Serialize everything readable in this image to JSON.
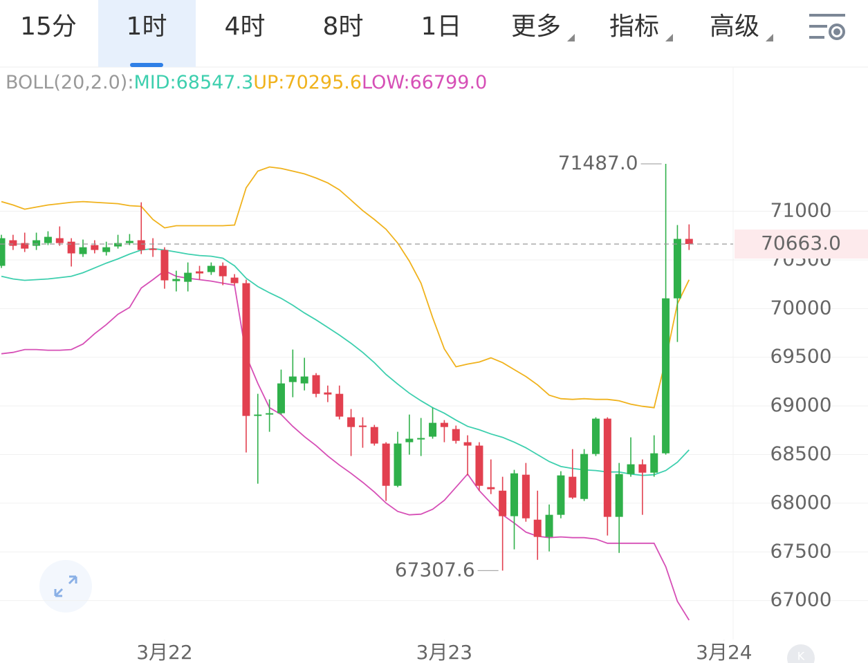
{
  "tabs": [
    {
      "label": "15分",
      "selected": false,
      "dropdown": false
    },
    {
      "label": "1时",
      "selected": true,
      "dropdown": false
    },
    {
      "label": "4时",
      "selected": false,
      "dropdown": false
    },
    {
      "label": "8时",
      "selected": false,
      "dropdown": false
    },
    {
      "label": "1日",
      "selected": false,
      "dropdown": false
    },
    {
      "label": "更多",
      "selected": false,
      "dropdown": true
    },
    {
      "label": "指标",
      "selected": false,
      "dropdown": true
    },
    {
      "label": "高级",
      "selected": false,
      "dropdown": true
    }
  ],
  "chart_data": {
    "type": "candlestick",
    "indicator": "BOLL(20,2.0):",
    "up_color": "#2fb04a",
    "down_color": "#e2404f",
    "xlim": [
      -0.12,
      62.78
    ],
    "xticks": [
      {
        "value": 14,
        "label": "3月22"
      },
      {
        "value": 38,
        "label": "3月23"
      },
      {
        "value": 62,
        "label": "3月24"
      }
    ],
    "ylim": [
      66600,
      72460
    ],
    "yticks": [
      67000,
      67500,
      68000,
      68500,
      69000,
      69500,
      70000,
      70500,
      71000
    ],
    "grid": true,
    "last_price": {
      "value": 70663,
      "label": "70663.0"
    },
    "annotations": [
      {
        "index": 57,
        "value": 71487,
        "label": "71487.0"
      },
      {
        "index": 43,
        "value": 67307.6,
        "label": "67307.6"
      }
    ],
    "candles": {
      "open": [
        70439,
        70702,
        70673,
        70645,
        70673,
        70723,
        70687,
        70560,
        70652,
        70581,
        70638,
        70673,
        70702,
        70616,
        70602,
        70282,
        70275,
        70382,
        70375,
        70439,
        70318,
        70261,
        68897,
        68911,
        68925,
        69245,
        69231,
        69316,
        69138,
        69124,
        68883,
        68798,
        68783,
        68613,
        68179,
        68627,
        68655,
        68684,
        68826,
        68762,
        68627,
        68592,
        68165,
        68129,
        67867,
        68293,
        67831,
        67654,
        67881,
        68272,
        68044,
        68506,
        68869,
        67860,
        68300,
        68400,
        68314,
        68513,
        70105,
        70716
      ],
      "high": [
        70758,
        70758,
        70780,
        70780,
        70794,
        70844,
        70723,
        70709,
        70702,
        70687,
        70758,
        70766,
        71092,
        70723,
        70630,
        70389,
        70474,
        70439,
        70474,
        70474,
        70354,
        70297,
        69124,
        69067,
        69373,
        69579,
        69494,
        69337,
        69209,
        69209,
        68968,
        68883,
        68805,
        68627,
        68734,
        68911,
        68876,
        68982,
        68854,
        68798,
        68698,
        68627,
        68450,
        68272,
        68343,
        68414,
        68129,
        67987,
        68329,
        68556,
        68556,
        68883,
        68883,
        68414,
        68677,
        68450,
        68698,
        71487,
        70858,
        70865
      ],
      "low": [
        70417,
        70602,
        70581,
        70602,
        70652,
        70645,
        70432,
        70531,
        70567,
        70545,
        70616,
        70652,
        70560,
        70531,
        70204,
        70176,
        70176,
        70297,
        70346,
        70240,
        70240,
        68521,
        68201,
        68734,
        68911,
        69089,
        69159,
        69089,
        69039,
        68861,
        68485,
        68570,
        68592,
        68023,
        68165,
        68499,
        68485,
        68663,
        68627,
        68613,
        68286,
        68129,
        68094,
        67307.6,
        67526,
        67810,
        67419,
        67505,
        67845,
        68044,
        68023,
        68485,
        67668,
        67490,
        68272,
        67881,
        68272,
        68499,
        69657,
        70602
      ],
      "close": [
        70723,
        70645,
        70616,
        70702,
        70737,
        70673,
        70567,
        70630,
        70602,
        70630,
        70673,
        70695,
        70602,
        70602,
        70290,
        70304,
        70368,
        70361,
        70439,
        70332,
        70261,
        68897,
        68911,
        68925,
        69231,
        69302,
        69302,
        69124,
        69117,
        68890,
        68783,
        68783,
        68613,
        68179,
        68613,
        68663,
        68670,
        68826,
        68783,
        68641,
        68592,
        68179,
        68144,
        67867,
        68307,
        67845,
        67654,
        67881,
        68286,
        68058,
        68506,
        68869,
        67860,
        68300,
        68400,
        68314,
        68513,
        70105,
        70716,
        70663
      ]
    },
    "series": [
      {
        "name": "MID:",
        "color": "#3dcfae",
        "last_label": "68547.3",
        "values": [
          70332,
          70304,
          70290,
          70297,
          70304,
          70318,
          70332,
          70368,
          70417,
          70467,
          70510,
          70560,
          70602,
          70616,
          70602,
          70581,
          70560,
          70545,
          70538,
          70517,
          70439,
          70311,
          70226,
          70162,
          70105,
          70034,
          69955,
          69884,
          69806,
          69728,
          69643,
          69550,
          69444,
          69323,
          69224,
          69131,
          69053,
          68982,
          68925,
          68854,
          68790,
          68755,
          68712,
          68677,
          68627,
          68570,
          68499,
          68428,
          68378,
          68357,
          68343,
          68336,
          68321,
          68321,
          68300,
          68286,
          68293,
          68336,
          68421,
          68547.3
        ]
      },
      {
        "name": "UP:",
        "color": "#f0b21c",
        "last_label": "70295.6",
        "values": [
          71099,
          71064,
          71021,
          71043,
          71064,
          71078,
          71092,
          71099,
          71092,
          71085,
          71078,
          71057,
          71050,
          70915,
          70829,
          70851,
          70851,
          70851,
          70851,
          70851,
          70858,
          71241,
          71412,
          71455,
          71440,
          71412,
          71384,
          71341,
          71291,
          71220,
          71114,
          71007,
          70915,
          70815,
          70673,
          70488,
          70261,
          69906,
          69586,
          69402,
          69430,
          69451,
          69494,
          69444,
          69373,
          69302,
          69216,
          69110,
          69074,
          69067,
          69074,
          69067,
          69067,
          69053,
          69018,
          68996,
          68982,
          69479,
          70048,
          70295.6
        ]
      },
      {
        "name": "LOW:",
        "color": "#d64fb6",
        "last_label": "66799.0",
        "values": [
          69536,
          69550,
          69579,
          69579,
          69572,
          69572,
          69579,
          69636,
          69742,
          69835,
          69941,
          70012,
          70211,
          70297,
          70389,
          70332,
          70311,
          70297,
          70282,
          70261,
          70240,
          69515,
          69231,
          68982,
          68911,
          68790,
          68684,
          68592,
          68485,
          68392,
          68307,
          68215,
          68115,
          68002,
          67916,
          67881,
          67888,
          67938,
          68030,
          68165,
          68300,
          68129,
          68002,
          67881,
          67796,
          67703,
          67661,
          67646,
          67654,
          67646,
          67646,
          67632,
          67589,
          67589,
          67589,
          67589,
          67589,
          67348,
          66993,
          66799
        ]
      }
    ]
  }
}
